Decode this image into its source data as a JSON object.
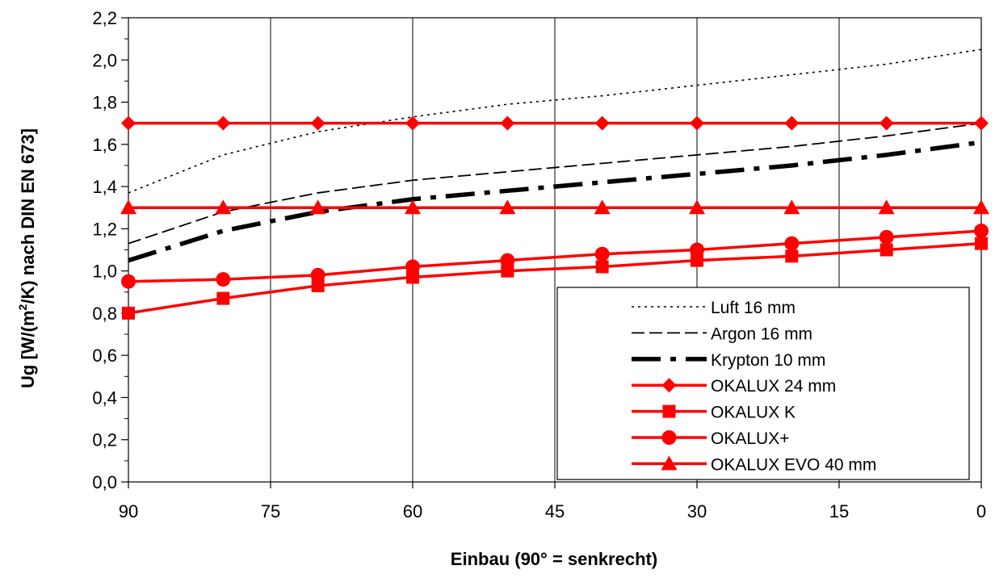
{
  "chart_data": {
    "type": "line",
    "title": "",
    "xlabel": "Einbau (90° = senkrecht)",
    "ylabel_prefix": "Ug [W/(m",
    "ylabel_sup": "2",
    "ylabel_suffix": "/K) nach DIN EN 673]",
    "xlim": [
      90,
      0
    ],
    "ylim": [
      0,
      2.2
    ],
    "x_ticks": [
      90,
      75,
      60,
      45,
      30,
      15,
      0
    ],
    "x_tick_labels": [
      "90",
      "75",
      "60",
      "45",
      "30",
      "15",
      "0"
    ],
    "y_ticks": [
      0,
      0.2,
      0.4,
      0.6,
      0.8,
      1.0,
      1.2,
      1.4,
      1.6,
      1.8,
      2.0,
      2.2
    ],
    "y_tick_labels": [
      "0,0",
      "0,2",
      "0,4",
      "0,6",
      "0,8",
      "1,0",
      "1,2",
      "1,4",
      "1,6",
      "1,8",
      "2,0",
      "2,2"
    ],
    "grid": {
      "vertical": true,
      "horizontal": false
    },
    "legend_position": "bottom-right",
    "series": [
      {
        "name": "Luft 16 mm",
        "style": "dotted",
        "color": "#000000",
        "marker": "none",
        "x": [
          90,
          80,
          70,
          60,
          50,
          40,
          30,
          20,
          10,
          0
        ],
        "y": [
          1.37,
          1.55,
          1.66,
          1.73,
          1.79,
          1.83,
          1.88,
          1.93,
          1.98,
          2.05
        ]
      },
      {
        "name": "Argon 16 mm",
        "style": "dashed",
        "color": "#000000",
        "marker": "none",
        "x": [
          90,
          80,
          70,
          60,
          50,
          40,
          30,
          20,
          10,
          0
        ],
        "y": [
          1.13,
          1.28,
          1.37,
          1.43,
          1.47,
          1.51,
          1.55,
          1.59,
          1.64,
          1.7
        ]
      },
      {
        "name": "Krypton 10 mm",
        "style": "dashdot-thick",
        "color": "#000000",
        "marker": "none",
        "x": [
          90,
          80,
          70,
          60,
          50,
          40,
          30,
          20,
          10,
          0
        ],
        "y": [
          1.05,
          1.19,
          1.28,
          1.34,
          1.38,
          1.42,
          1.46,
          1.5,
          1.55,
          1.61
        ]
      },
      {
        "name": "OKALUX 24 mm",
        "style": "solid",
        "color": "#ff0000",
        "marker": "diamond",
        "x": [
          90,
          80,
          70,
          60,
          50,
          40,
          30,
          20,
          10,
          0
        ],
        "y": [
          1.7,
          1.7,
          1.7,
          1.7,
          1.7,
          1.7,
          1.7,
          1.7,
          1.7,
          1.7
        ]
      },
      {
        "name": "OKALUX K",
        "style": "solid",
        "color": "#ff0000",
        "marker": "square",
        "x": [
          90,
          80,
          70,
          60,
          50,
          40,
          30,
          20,
          10,
          0
        ],
        "y": [
          0.8,
          0.87,
          0.93,
          0.97,
          1.0,
          1.02,
          1.05,
          1.07,
          1.1,
          1.13
        ]
      },
      {
        "name": "OKALUX+",
        "style": "solid",
        "color": "#ff0000",
        "marker": "circle",
        "x": [
          90,
          80,
          70,
          60,
          50,
          40,
          30,
          20,
          10,
          0
        ],
        "y": [
          0.95,
          0.96,
          0.98,
          1.02,
          1.05,
          1.08,
          1.1,
          1.13,
          1.16,
          1.19
        ]
      },
      {
        "name": "OKALUX EVO 40 mm",
        "style": "solid",
        "color": "#ff0000",
        "marker": "triangle",
        "x": [
          90,
          80,
          70,
          60,
          50,
          40,
          30,
          20,
          10,
          0
        ],
        "y": [
          1.3,
          1.3,
          1.3,
          1.3,
          1.3,
          1.3,
          1.3,
          1.3,
          1.3,
          1.3
        ]
      }
    ]
  }
}
